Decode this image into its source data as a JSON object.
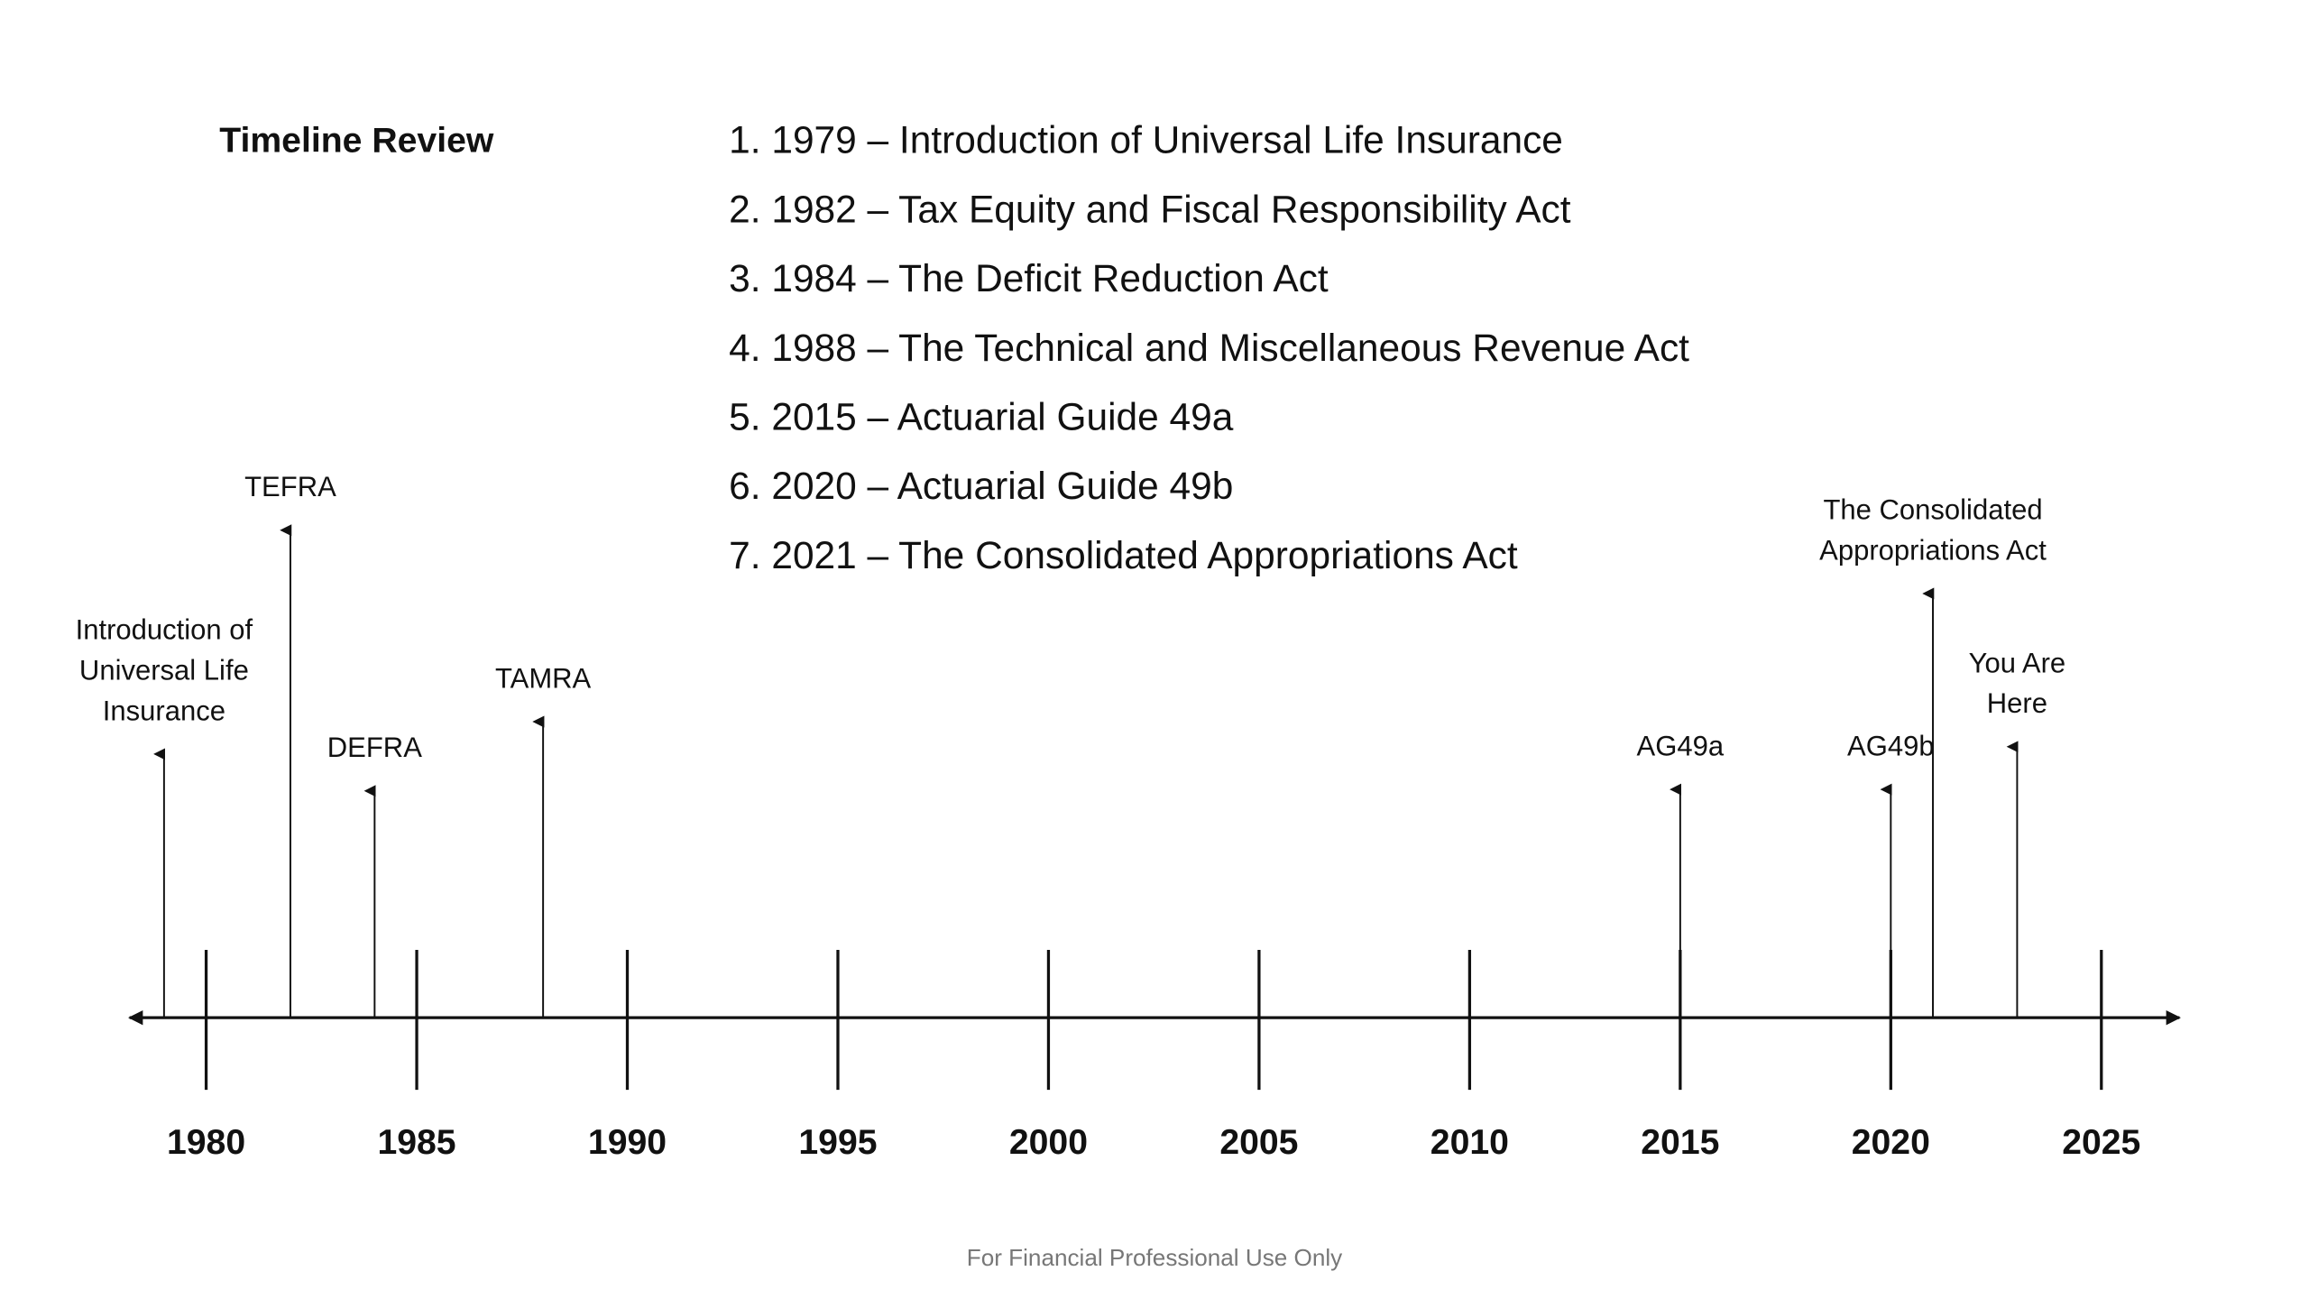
{
  "title": "Timeline Review",
  "list": [
    "1. 1979 – Introduction of Universal Life Insurance",
    "2. 1982 – Tax Equity and Fiscal Responsibility Act",
    "3. 1984 – The Deficit Reduction Act",
    "4. 1988 – The Technical and Miscellaneous Revenue Act",
    "5. 2015 – Actuarial Guide 49a",
    "6. 2020 – Actuarial Guide 49b",
    "7. 2021 – The Consolidated Appropriations Act"
  ],
  "axis": {
    "ticks": [
      1980,
      1985,
      1990,
      1995,
      2000,
      2005,
      2010,
      2015,
      2020,
      2025
    ]
  },
  "events": [
    {
      "lines": [
        "Introduction of",
        "Universal Life",
        "Insurance"
      ],
      "year": 1979
    },
    {
      "lines": [
        "TEFRA"
      ],
      "year": 1982
    },
    {
      "lines": [
        "DEFRA"
      ],
      "year": 1984
    },
    {
      "lines": [
        "TAMRA"
      ],
      "year": 1988
    },
    {
      "lines": [
        "AG49a"
      ],
      "year": 2015
    },
    {
      "lines": [
        "AG49b"
      ],
      "year": 2020
    },
    {
      "lines": [
        "The Consolidated",
        "Appropriations Act"
      ],
      "year": 2021
    },
    {
      "lines": [
        "You Are",
        "Here"
      ],
      "year": 2023
    }
  ],
  "footer": "For Financial Professional Use Only"
}
